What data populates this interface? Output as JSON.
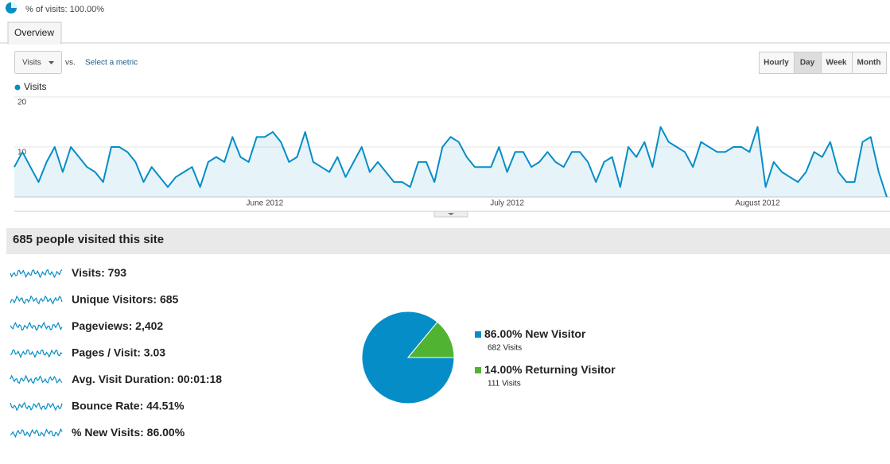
{
  "segment": "% of visits: 100.00%",
  "tabs": [
    "Overview"
  ],
  "metric_selector": {
    "selected": "Visits",
    "vs": "vs.",
    "link": "Select a metric"
  },
  "granularity": [
    "Hourly",
    "Day",
    "Week",
    "Month"
  ],
  "summary_title": "685 people visited this site",
  "metrics": [
    {
      "label": "Visits:",
      "value": "793"
    },
    {
      "label": "Unique Visitors:",
      "value": "685"
    },
    {
      "label": "Pageviews:",
      "value": "2,402"
    },
    {
      "label": "Pages / Visit:",
      "value": "3.03"
    },
    {
      "label": "Avg. Visit Duration:",
      "value": "00:01:18"
    },
    {
      "label": "Bounce Rate:",
      "value": "44.51%"
    },
    {
      "label": "% New Visits:",
      "value": "86.00%"
    }
  ],
  "chart_data": [
    {
      "type": "line",
      "categories": [
        null,
        null,
        null,
        null,
        null,
        null,
        null,
        null,
        null,
        null,
        null,
        null,
        null,
        null,
        null,
        null,
        null,
        null,
        null,
        null,
        null,
        null,
        null,
        null,
        null,
        null,
        null,
        null,
        null,
        null,
        null,
        "June 2012",
        null,
        null,
        null,
        null,
        null,
        null,
        null,
        null,
        null,
        null,
        null,
        null,
        null,
        null,
        null,
        null,
        null,
        null,
        null,
        null,
        null,
        null,
        null,
        null,
        null,
        null,
        null,
        null,
        null,
        "July 2012",
        null,
        null,
        null,
        null,
        null,
        null,
        null,
        null,
        null,
        null,
        null,
        null,
        null,
        null,
        null,
        null,
        null,
        null,
        null,
        null,
        null,
        null,
        null,
        null,
        null,
        null,
        null,
        null,
        null,
        null,
        "August 2012",
        null,
        null,
        null,
        null,
        null,
        null,
        null,
        null,
        null,
        null,
        null,
        null,
        null,
        null,
        null,
        null
      ],
      "series": [
        {
          "name": "Visits",
          "color": "#058dc7",
          "values": [
            6,
            9,
            6,
            3,
            7,
            10,
            5,
            10,
            8,
            6,
            5,
            3,
            10,
            10,
            9,
            7,
            3,
            6,
            4,
            2,
            4,
            5,
            6,
            2,
            7,
            8,
            7,
            12,
            8,
            7,
            12,
            12,
            13,
            11,
            7,
            8,
            13,
            7,
            6,
            5,
            8,
            4,
            7,
            10,
            5,
            7,
            5,
            3,
            3,
            2,
            7,
            7,
            3,
            10,
            12,
            11,
            8,
            6,
            6,
            6,
            10,
            5,
            9,
            9,
            6,
            7,
            9,
            7,
            6,
            9,
            9,
            7,
            3,
            7,
            8,
            2,
            10,
            8,
            11,
            6,
            14,
            11,
            10,
            9,
            6,
            11,
            10,
            9,
            9,
            10,
            10,
            9,
            14,
            2,
            7,
            5,
            4,
            3,
            5,
            9,
            8,
            11,
            5,
            3,
            3,
            11,
            12,
            5,
            0
          ]
        }
      ],
      "ylim": [
        0,
        20
      ],
      "yticks": [
        10,
        20
      ],
      "grid": true
    },
    {
      "type": "pie",
      "categories": [
        "New Visitor",
        "Returning Visitor"
      ],
      "values": [
        86,
        14
      ],
      "value_labels": [
        "86.00%",
        "14.00%"
      ],
      "counts": [
        "682 Visits",
        "111 Visits"
      ],
      "colors": [
        "#058dc7",
        "#50b432"
      ]
    }
  ]
}
